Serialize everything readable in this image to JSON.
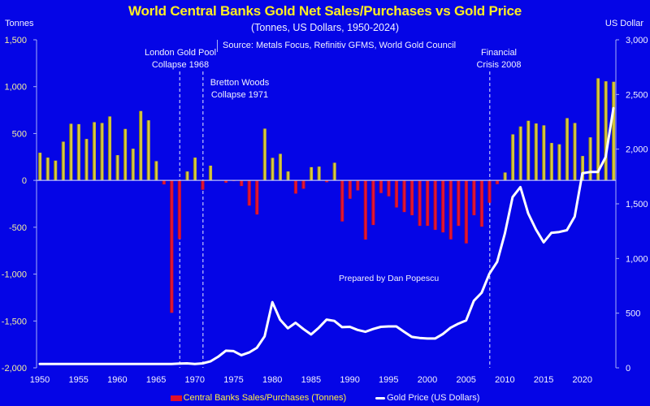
{
  "chart_data": {
    "type": "bar+line",
    "title": "World Central Banks Gold Net Sales/Purchases vs Gold Price",
    "subtitle": "(Tonnes, US Dollars, 1950-2024)",
    "source": "Source: Metals Focus, Refinitiv GFMS, World Gold Council",
    "credit": "Prepared by Dan Popescu",
    "ylabel_left": "Tonnes",
    "ylabel_right": "US Dollar",
    "ylim_left": [
      -2000,
      1500
    ],
    "ylim_right": [
      0,
      3000
    ],
    "xlim": [
      1950,
      2024
    ],
    "yticks_left": [
      "1,500",
      "1,000",
      "500",
      "0",
      "-500",
      "-1,000",
      "-1,500",
      "-2,000"
    ],
    "yticks_left_values": [
      1500,
      1000,
      500,
      0,
      -500,
      -1000,
      -1500,
      -2000
    ],
    "yticks_right": [
      "3,000",
      "2,500",
      "2,000",
      "1,500",
      "1,000",
      "500",
      "0"
    ],
    "yticks_right_values": [
      3000,
      2500,
      2000,
      1500,
      1000,
      500,
      0
    ],
    "xticks": [
      "1950",
      "1955",
      "1960",
      "1965",
      "1970",
      "1975",
      "1980",
      "1985",
      "1990",
      "1995",
      "2000",
      "2005",
      "2010",
      "2015",
      "2020"
    ],
    "legend": "bottom-center",
    "annotations": [
      {
        "year": 1968,
        "lines": [
          "London Gold Pool",
          "Collapse 1968"
        ]
      },
      {
        "year": 1971,
        "lines": [
          "Bretton Woods",
          "Collapse 1971"
        ]
      },
      {
        "year": 2008,
        "lines": [
          "Financial",
          "Crisis 2008"
        ]
      }
    ],
    "years": [
      1950,
      1951,
      1952,
      1953,
      1954,
      1955,
      1956,
      1957,
      1958,
      1959,
      1960,
      1961,
      1962,
      1963,
      1964,
      1965,
      1966,
      1967,
      1968,
      1969,
      1970,
      1971,
      1972,
      1973,
      1974,
      1975,
      1976,
      1977,
      1978,
      1979,
      1980,
      1981,
      1982,
      1983,
      1984,
      1985,
      1986,
      1987,
      1988,
      1989,
      1990,
      1991,
      1992,
      1993,
      1994,
      1995,
      1996,
      1997,
      1998,
      1999,
      2000,
      2001,
      2002,
      2003,
      2004,
      2005,
      2006,
      2007,
      2008,
      2009,
      2010,
      2011,
      2012,
      2013,
      2014,
      2015,
      2016,
      2017,
      2018,
      2019,
      2020,
      2021,
      2022,
      2023,
      2024
    ],
    "series": [
      {
        "name": "Central Banks Sales/Purchases (Tonnes)",
        "type": "bar",
        "axis": "left",
        "positive_color": "#d8c838",
        "negative_color": "#e0102a",
        "values": [
          295,
          243,
          211,
          413,
          604,
          600,
          442,
          621,
          612,
          682,
          269,
          549,
          338,
          740,
          641,
          205,
          -43,
          -1413,
          -627,
          95,
          243,
          -100,
          157,
          0,
          -25,
          -8,
          -60,
          -269,
          -364,
          552,
          240,
          283,
          95,
          -141,
          -89,
          141,
          147,
          -20,
          188,
          -438,
          -196,
          -107,
          -632,
          -476,
          -135,
          -170,
          -289,
          -338,
          -372,
          -485,
          -485,
          -528,
          -555,
          -629,
          -485,
          -672,
          -372,
          -494,
          -239,
          -40,
          84,
          491,
          575,
          636,
          607,
          587,
          399,
          385,
          664,
          612,
          260,
          459,
          1089,
          1057,
          1052
        ]
      },
      {
        "name": "Gold Price (US Dollars)",
        "type": "line",
        "axis": "right",
        "color": "#ffffff",
        "values": [
          35,
          35,
          35,
          35,
          35,
          35,
          35,
          35,
          35,
          35,
          35,
          35,
          35,
          35,
          35,
          35,
          35,
          35,
          39,
          41,
          36,
          41,
          59,
          101,
          157,
          153,
          116,
          140,
          183,
          288,
          601,
          441,
          362,
          412,
          355,
          305,
          367,
          441,
          429,
          372,
          375,
          347,
          330,
          355,
          375,
          379,
          379,
          330,
          283,
          273,
          268,
          268,
          310,
          367,
          404,
          434,
          613,
          687,
          860,
          970,
          1229,
          1562,
          1653,
          1414,
          1266,
          1148,
          1234,
          1242,
          1259,
          1383,
          1779,
          1791,
          1791,
          1928,
          2375
        ]
      }
    ]
  },
  "legend": {
    "bars_label": "Central Banks Sales/Purchases (Tonnes)",
    "line_label": "Gold Price (US Dollars)"
  }
}
